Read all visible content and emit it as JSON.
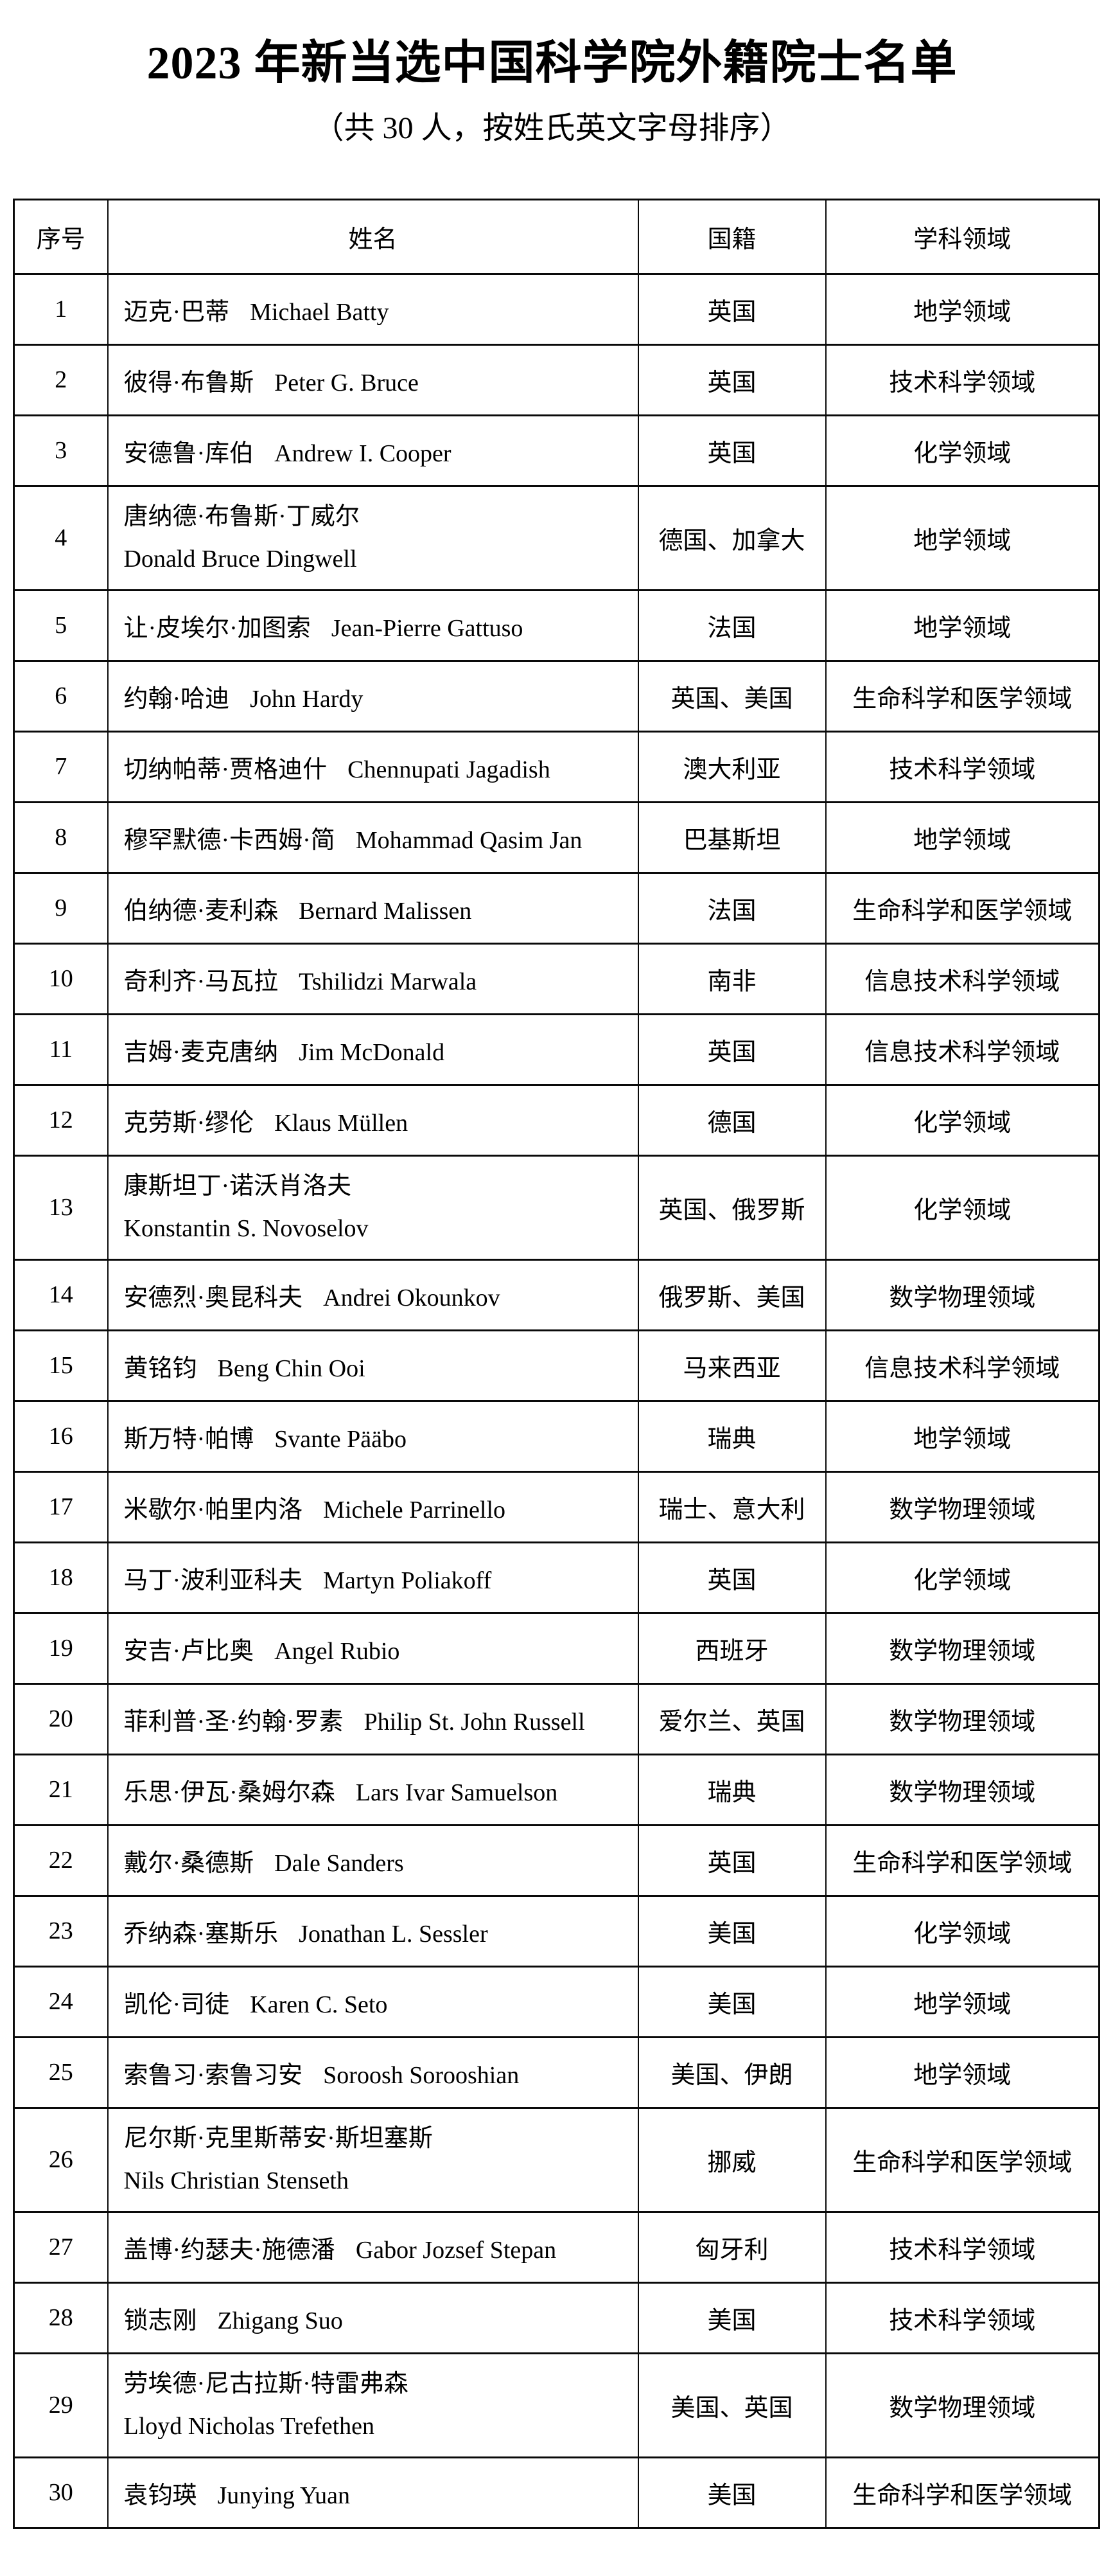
{
  "page": {
    "title": "2023 年新当选中国科学院外籍院士名单",
    "subtitle": "（共 30 人，按姓氏英文字母排序）"
  },
  "colors": {
    "page_background": "#ffffff",
    "text_color": "#000000",
    "border_color": "#0a0a0a"
  },
  "table": {
    "headers": [
      "序号",
      "姓名",
      "国籍",
      "学科领域"
    ],
    "rows": [
      {
        "no": "1",
        "cn": "迈克·巴蒂",
        "en": "Michael Batty",
        "nat": "英国",
        "field": "地学领域",
        "wrap": false
      },
      {
        "no": "2",
        "cn": "彼得·布鲁斯",
        "en": "Peter G. Bruce",
        "nat": "英国",
        "field": "技术科学领域",
        "wrap": false
      },
      {
        "no": "3",
        "cn": "安德鲁·库伯",
        "en": "Andrew I. Cooper",
        "nat": "英国",
        "field": "化学领域",
        "wrap": false
      },
      {
        "no": "4",
        "cn": "唐纳德·布鲁斯·丁威尔",
        "en": "Donald Bruce Dingwell",
        "nat": "德国、加拿大",
        "field": "地学领域",
        "wrap": true
      },
      {
        "no": "5",
        "cn": "让·皮埃尔·加图索",
        "en": "Jean-Pierre Gattuso",
        "nat": "法国",
        "field": "地学领域",
        "wrap": false
      },
      {
        "no": "6",
        "cn": "约翰·哈迪",
        "en": "John Hardy",
        "nat": "英国、美国",
        "field": "生命科学和医学领域",
        "wrap": false
      },
      {
        "no": "7",
        "cn": "切纳帕蒂·贾格迪什",
        "en": "Chennupati Jagadish",
        "nat": "澳大利亚",
        "field": "技术科学领域",
        "wrap": false
      },
      {
        "no": "8",
        "cn": "穆罕默德·卡西姆·简",
        "en": "Mohammad Qasim Jan",
        "nat": "巴基斯坦",
        "field": "地学领域",
        "wrap": false
      },
      {
        "no": "9",
        "cn": "伯纳德·麦利森",
        "en": "Bernard Malissen",
        "nat": "法国",
        "field": "生命科学和医学领域",
        "wrap": false
      },
      {
        "no": "10",
        "cn": "奇利齐·马瓦拉",
        "en": "Tshilidzi Marwala",
        "nat": "南非",
        "field": "信息技术科学领域",
        "wrap": false
      },
      {
        "no": "11",
        "cn": "吉姆·麦克唐纳",
        "en": "Jim McDonald",
        "nat": "英国",
        "field": "信息技术科学领域",
        "wrap": false
      },
      {
        "no": "12",
        "cn": "克劳斯·缪伦",
        "en": "Klaus Müllen",
        "nat": "德国",
        "field": "化学领域",
        "wrap": false
      },
      {
        "no": "13",
        "cn": "康斯坦丁·诺沃肖洛夫",
        "en": "Konstantin S. Novoselov",
        "nat": "英国、俄罗斯",
        "field": "化学领域",
        "wrap": true
      },
      {
        "no": "14",
        "cn": "安德烈·奥昆科夫",
        "en": "Andrei Okounkov",
        "nat": "俄罗斯、美国",
        "field": "数学物理领域",
        "wrap": false
      },
      {
        "no": "15",
        "cn": "黄铭钧",
        "en": "Beng Chin Ooi",
        "nat": "马来西亚",
        "field": "信息技术科学领域",
        "wrap": false
      },
      {
        "no": "16",
        "cn": "斯万特·帕博",
        "en": "Svante Pääbo",
        "nat": "瑞典",
        "field": "地学领域",
        "wrap": false
      },
      {
        "no": "17",
        "cn": "米歇尔·帕里内洛",
        "en": "Michele Parrinello",
        "nat": "瑞士、意大利",
        "field": "数学物理领域",
        "wrap": false
      },
      {
        "no": "18",
        "cn": "马丁·波利亚科夫",
        "en": "Martyn Poliakoff",
        "nat": "英国",
        "field": "化学领域",
        "wrap": false
      },
      {
        "no": "19",
        "cn": "安吉·卢比奥",
        "en": "Angel Rubio",
        "nat": "西班牙",
        "field": "数学物理领域",
        "wrap": false
      },
      {
        "no": "20",
        "cn": "菲利普·圣·约翰·罗素",
        "en": "Philip St. John Russell",
        "nat": "爱尔兰、英国",
        "field": "数学物理领域",
        "wrap": false
      },
      {
        "no": "21",
        "cn": "乐思·伊瓦·桑姆尔森",
        "en": "Lars Ivar Samuelson",
        "nat": "瑞典",
        "field": "数学物理领域",
        "wrap": false
      },
      {
        "no": "22",
        "cn": "戴尔·桑德斯",
        "en": "Dale Sanders",
        "nat": "英国",
        "field": "生命科学和医学领域",
        "wrap": false
      },
      {
        "no": "23",
        "cn": "乔纳森·塞斯乐",
        "en": "Jonathan L. Sessler",
        "nat": "美国",
        "field": "化学领域",
        "wrap": false
      },
      {
        "no": "24",
        "cn": "凯伦·司徒",
        "en": "Karen C. Seto",
        "nat": "美国",
        "field": "地学领域",
        "wrap": false
      },
      {
        "no": "25",
        "cn": "索鲁习·索鲁习安",
        "en": "Soroosh Sorooshian",
        "nat": "美国、伊朗",
        "field": "地学领域",
        "wrap": false
      },
      {
        "no": "26",
        "cn": "尼尔斯·克里斯蒂安·斯坦塞斯",
        "en": "Nils Christian Stenseth",
        "nat": "挪威",
        "field": "生命科学和医学领域",
        "wrap": true
      },
      {
        "no": "27",
        "cn": "盖博·约瑟夫·施德潘",
        "en": "Gabor Jozsef Stepan",
        "nat": "匈牙利",
        "field": "技术科学领域",
        "wrap": false
      },
      {
        "no": "28",
        "cn": "锁志刚",
        "en": "Zhigang Suo",
        "nat": "美国",
        "field": "技术科学领域",
        "wrap": false
      },
      {
        "no": "29",
        "cn": "劳埃德·尼古拉斯·特雷弗森",
        "en": "Lloyd Nicholas Trefethen",
        "nat": "美国、英国",
        "field": "数学物理领域",
        "wrap": true
      },
      {
        "no": "30",
        "cn": "袁钧瑛",
        "en": "Junying Yuan",
        "nat": "美国",
        "field": "生命科学和医学领域",
        "wrap": false
      }
    ]
  }
}
